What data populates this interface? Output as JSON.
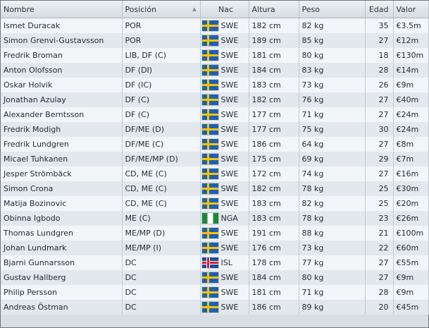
{
  "columns": {
    "nombre": "Nombre",
    "posicion": "Posición",
    "nac": "Nac",
    "altura": "Altura",
    "peso": "Peso",
    "edad": "Edad",
    "valor": "Valor"
  },
  "sort_indicator": "▲",
  "flag_colors": {
    "SWE": [
      "#1f5fb0",
      "#f6c500"
    ],
    "NGA": [
      "#1a8a3a",
      "#ffffff"
    ],
    "ISL": [
      "#1e4ea0",
      "#ffffff",
      "#d0202a"
    ]
  },
  "players": [
    {
      "name": "Ismet Duracak",
      "position": "POR",
      "nat": "SWE",
      "height": "182 cm",
      "weight": "82 kg",
      "age": "35",
      "value": "€3.5m"
    },
    {
      "name": "Simon Grenvi-Gustavsson",
      "position": "POR",
      "nat": "SWE",
      "height": "189 cm",
      "weight": "85 kg",
      "age": "27",
      "value": "€12m"
    },
    {
      "name": "Fredrik Broman",
      "position": "LIB, DF (C)",
      "nat": "SWE",
      "height": "181 cm",
      "weight": "80 kg",
      "age": "18",
      "value": "€130m"
    },
    {
      "name": "Anton Olofsson",
      "position": "DF (DI)",
      "nat": "SWE",
      "height": "184 cm",
      "weight": "83 kg",
      "age": "28",
      "value": "€14m"
    },
    {
      "name": "Oskar Holvik",
      "position": "DF (IC)",
      "nat": "SWE",
      "height": "183 cm",
      "weight": "73 kg",
      "age": "26",
      "value": "€9m"
    },
    {
      "name": "Jonathan Azulay",
      "position": "DF (C)",
      "nat": "SWE",
      "height": "182 cm",
      "weight": "76 kg",
      "age": "27",
      "value": "€40m"
    },
    {
      "name": "Alexander Berntsson",
      "position": "DF (C)",
      "nat": "SWE",
      "height": "177 cm",
      "weight": "71 kg",
      "age": "27",
      "value": "€24m"
    },
    {
      "name": "Fredrik Modigh",
      "position": "DF/ME (D)",
      "nat": "SWE",
      "height": "177 cm",
      "weight": "75 kg",
      "age": "30",
      "value": "€24m"
    },
    {
      "name": "Fredrik Lundgren",
      "position": "DF/ME (C)",
      "nat": "SWE",
      "height": "186 cm",
      "weight": "64 kg",
      "age": "27",
      "value": "€8m"
    },
    {
      "name": "Micael Tuhkanen",
      "position": "DF/ME/MP (D)",
      "nat": "SWE",
      "height": "175 cm",
      "weight": "69 kg",
      "age": "29",
      "value": "€7m"
    },
    {
      "name": "Jesper Strömbäck",
      "position": "CD, ME (C)",
      "nat": "SWE",
      "height": "172 cm",
      "weight": "74 kg",
      "age": "27",
      "value": "€16m"
    },
    {
      "name": "Simon Crona",
      "position": "CD, ME (C)",
      "nat": "SWE",
      "height": "182 cm",
      "weight": "78 kg",
      "age": "25",
      "value": "€30m"
    },
    {
      "name": "Matija Bozinovic",
      "position": "CD, ME (C)",
      "nat": "SWE",
      "height": "183 cm",
      "weight": "82 kg",
      "age": "25",
      "value": "€20m"
    },
    {
      "name": "Obinna Igbodo",
      "position": "ME (C)",
      "nat": "NGA",
      "height": "183 cm",
      "weight": "78 kg",
      "age": "23",
      "value": "€26m"
    },
    {
      "name": "Thomas Lundgren",
      "position": "ME/MP (D)",
      "nat": "SWE",
      "height": "191 cm",
      "weight": "88 kg",
      "age": "21",
      "value": "€100m"
    },
    {
      "name": "Johan Lundmark",
      "position": "ME/MP (I)",
      "nat": "SWE",
      "height": "176 cm",
      "weight": "73 kg",
      "age": "22",
      "value": "€60m"
    },
    {
      "name": "Bjarni Gunnarsson",
      "position": "DC",
      "nat": "ISL",
      "height": "178 cm",
      "weight": "77 kg",
      "age": "27",
      "value": "€55m"
    },
    {
      "name": "Gustav Hallberg",
      "position": "DC",
      "nat": "SWE",
      "height": "184 cm",
      "weight": "80 kg",
      "age": "27",
      "value": "€9m"
    },
    {
      "name": "Philip Persson",
      "position": "DC",
      "nat": "SWE",
      "height": "181 cm",
      "weight": "71 kg",
      "age": "28",
      "value": "€9m"
    },
    {
      "name": "Andreas Östman",
      "position": "DC",
      "nat": "SWE",
      "height": "186 cm",
      "weight": "89 kg",
      "age": "20",
      "value": "€45m"
    }
  ]
}
